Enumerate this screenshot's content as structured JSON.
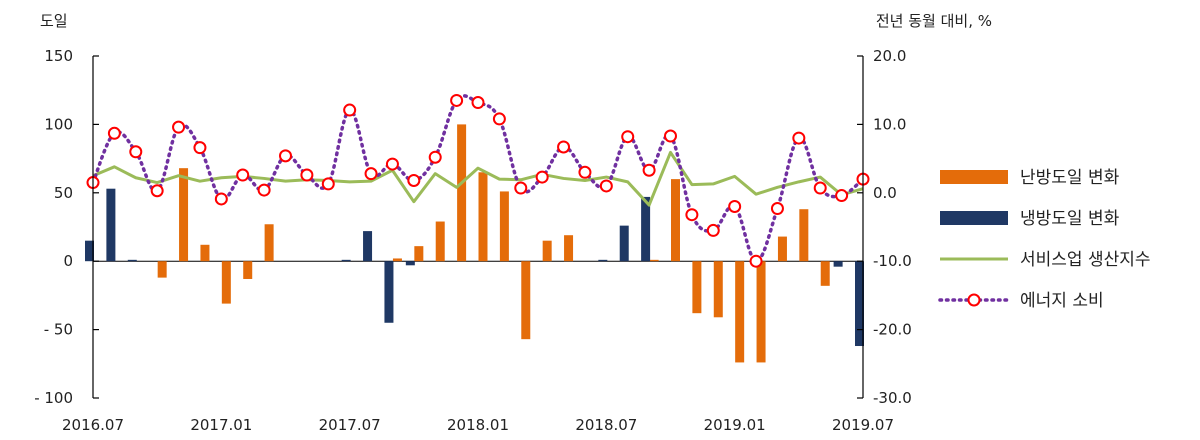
{
  "chart_data": {
    "type": "bar+line",
    "title": "",
    "left_axis_label": "도일",
    "right_axis_label": "전년 동월 대비, %",
    "left_ylim": [
      -100,
      150
    ],
    "left_yticks": [
      150,
      100,
      50,
      0,
      -50,
      -100
    ],
    "left_ytick_labels": [
      "150",
      "100",
      "50",
      "0",
      "- 50",
      "- 100"
    ],
    "right_ylim": [
      -30,
      20
    ],
    "right_yticks": [
      20,
      10,
      0,
      -10,
      -20,
      -30
    ],
    "right_ytick_labels": [
      "20.0",
      "10.0",
      "0.0",
      "-10.0",
      "-20.0",
      "-30.0"
    ],
    "x_tick_labels": [
      "2016.07",
      "2017.01",
      "2017.07",
      "2018.01",
      "2018.07",
      "2019.01",
      "2019.07"
    ],
    "months": [
      "2016.07",
      "2016.08",
      "2016.09",
      "2016.10",
      "2016.11",
      "2016.12",
      "2017.01",
      "2017.02",
      "2017.03",
      "2017.04",
      "2017.05",
      "2017.06",
      "2017.07",
      "2017.08",
      "2017.09",
      "2017.10",
      "2017.11",
      "2017.12",
      "2018.01",
      "2018.02",
      "2018.03",
      "2018.04",
      "2018.05",
      "2018.06",
      "2018.07",
      "2018.08",
      "2018.09",
      "2018.10",
      "2018.11",
      "2018.12",
      "2019.01",
      "2019.02",
      "2019.03",
      "2019.04",
      "2019.05",
      "2019.06",
      "2019.07"
    ],
    "legend_position": "right",
    "series": [
      {
        "name": "난방도일 변화",
        "kind": "bar",
        "axis": "left",
        "color": "#E46C0A",
        "values": [
          0,
          0,
          0,
          -12,
          68,
          12,
          -31,
          -13,
          27,
          0,
          0,
          0,
          0,
          0,
          2,
          11,
          29,
          100,
          65,
          51,
          -57,
          15,
          19,
          0,
          0,
          0,
          1,
          60,
          -38,
          -41,
          -74,
          -74,
          18,
          38,
          -18,
          0,
          0
        ]
      },
      {
        "name": "냉방도일 변화",
        "kind": "bar",
        "axis": "left",
        "color": "#1F3864",
        "values": [
          15,
          53,
          1,
          0,
          0,
          0,
          0,
          0,
          0,
          0,
          0,
          0,
          1,
          22,
          -45,
          -3,
          0,
          0,
          0,
          0,
          0,
          0,
          0,
          0,
          1,
          26,
          47,
          0,
          0,
          0,
          0,
          0,
          0,
          0,
          0,
          -4,
          -62
        ]
      },
      {
        "name": "서비스업 생산지수",
        "kind": "line",
        "axis": "right",
        "color": "#9BBB59",
        "values": [
          2.5,
          3.8,
          2.2,
          1.5,
          2.5,
          1.7,
          2.2,
          2.4,
          2.1,
          1.7,
          1.9,
          1.8,
          1.6,
          1.7,
          3.3,
          -1.3,
          2.8,
          0.8,
          3.6,
          2.0,
          1.9,
          2.7,
          2.1,
          1.8,
          2.3,
          1.6,
          -1.8,
          5.9,
          1.2,
          1.3,
          2.4,
          -0.2,
          0.8,
          1.6,
          2.3,
          -0.3,
          0.6
        ]
      },
      {
        "name": "에너지 소비",
        "kind": "line-marker",
        "axis": "right",
        "color": "#7030A0",
        "marker_color": "#FF0000",
        "values": [
          1.5,
          8.7,
          6.0,
          0.3,
          9.6,
          6.6,
          -0.9,
          2.6,
          0.4,
          5.4,
          2.6,
          1.3,
          12.1,
          2.8,
          4.2,
          1.8,
          5.2,
          13.5,
          13.2,
          10.8,
          0.7,
          2.3,
          6.7,
          3.0,
          1.0,
          8.2,
          3.3,
          8.3,
          -3.2,
          -5.5,
          -2.0,
          -10.0,
          -2.3,
          8.0,
          0.7,
          -0.4,
          2.0
        ]
      }
    ]
  }
}
